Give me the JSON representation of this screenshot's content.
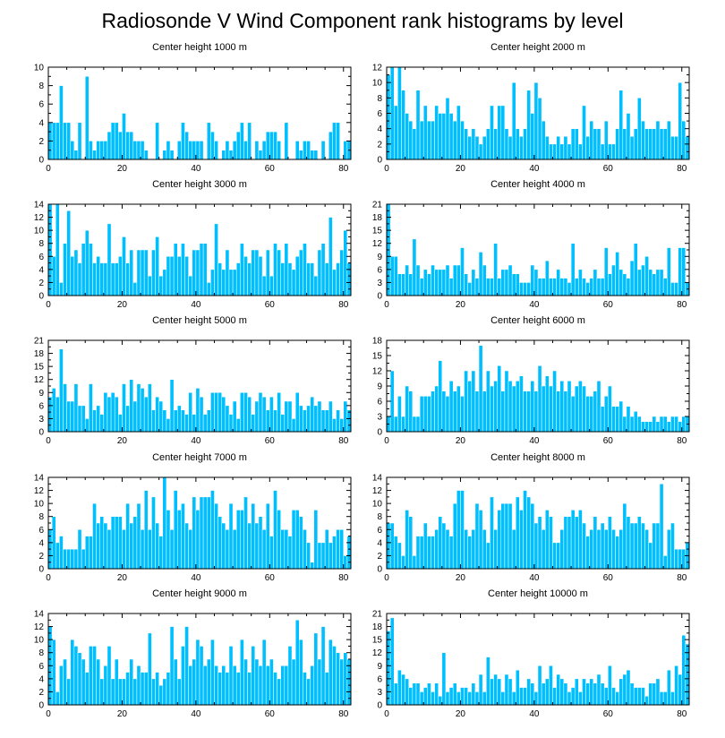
{
  "title": "Radiosonde V Wind Component rank histograms by level",
  "style": {
    "bar_color": "#00bfff",
    "bar_stroke": "#ffffff",
    "axis_color": "#000000"
  },
  "chart_data": [
    {
      "type": "bar",
      "title": "Center height 1000 m",
      "xlim": [
        0,
        82
      ],
      "ylim": [
        0,
        10
      ],
      "xticks": [
        0,
        20,
        40,
        60,
        80
      ],
      "yticks": [
        0,
        2,
        4,
        6,
        8,
        10
      ],
      "values": [
        4,
        4,
        4,
        8,
        4,
        4,
        2,
        1,
        4,
        0,
        9,
        2,
        1,
        2,
        2,
        2,
        3,
        4,
        4,
        3,
        5,
        3,
        3,
        2,
        2,
        2,
        1,
        0,
        0,
        4,
        0,
        1,
        2,
        1,
        0,
        2,
        4,
        3,
        2,
        2,
        2,
        2,
        0,
        4,
        3,
        2,
        0,
        1,
        2,
        1,
        2,
        3,
        4,
        2,
        4,
        0,
        2,
        1,
        2,
        3,
        3,
        3,
        2,
        0,
        4,
        0,
        0,
        2,
        1,
        2,
        2,
        1,
        1,
        0,
        2,
        0,
        3,
        4,
        4,
        0,
        2,
        2
      ]
    },
    {
      "type": "bar",
      "title": "Center height 2000 m",
      "xlim": [
        0,
        82
      ],
      "ylim": [
        0,
        12
      ],
      "xticks": [
        0,
        20,
        40,
        60,
        80
      ],
      "yticks": [
        0,
        2,
        4,
        6,
        8,
        10,
        12
      ],
      "values": [
        11,
        12,
        7,
        12,
        9,
        6,
        5,
        4,
        9,
        5,
        7,
        5,
        5,
        7,
        6,
        6,
        8,
        6,
        5,
        7,
        5,
        4,
        3,
        4,
        3,
        2,
        3,
        4,
        7,
        4,
        7,
        7,
        4,
        3,
        10,
        4,
        3,
        4,
        9,
        6,
        10,
        8,
        5,
        3,
        2,
        2,
        3,
        2,
        3,
        2,
        4,
        4,
        2,
        7,
        3,
        5,
        4,
        4,
        2,
        5,
        2,
        2,
        4,
        9,
        4,
        6,
        3,
        4,
        8,
        5,
        4,
        4,
        4,
        5,
        4,
        4,
        5,
        3,
        3,
        10,
        5,
        3
      ]
    },
    {
      "type": "bar",
      "title": "Center height 3000 m",
      "xlim": [
        0,
        82
      ],
      "ylim": [
        0,
        14
      ],
      "xticks": [
        0,
        20,
        40,
        60,
        80
      ],
      "yticks": [
        0,
        2,
        4,
        6,
        8,
        10,
        12,
        14
      ],
      "values": [
        14,
        6,
        14,
        2,
        8,
        13,
        6,
        7,
        5,
        8,
        10,
        8,
        5,
        6,
        5,
        5,
        11,
        5,
        5,
        6,
        9,
        5,
        7,
        2,
        7,
        7,
        7,
        3,
        7,
        9,
        3,
        4,
        6,
        6,
        8,
        6,
        8,
        6,
        3,
        7,
        7,
        8,
        8,
        2,
        4,
        11,
        5,
        4,
        7,
        4,
        4,
        5,
        8,
        6,
        5,
        7,
        7,
        6,
        3,
        7,
        3,
        8,
        7,
        5,
        8,
        5,
        4,
        6,
        7,
        8,
        5,
        5,
        3,
        7,
        8,
        5,
        12,
        4,
        5,
        7,
        10,
        5
      ]
    },
    {
      "type": "bar",
      "title": "Center height 4000 m",
      "xlim": [
        0,
        82
      ],
      "ylim": [
        0,
        21
      ],
      "xticks": [
        0,
        20,
        40,
        60,
        80
      ],
      "yticks": [
        0,
        3,
        6,
        9,
        12,
        15,
        18,
        21
      ],
      "values": [
        21,
        9,
        9,
        5,
        5,
        7,
        5,
        13,
        7,
        4,
        6,
        5,
        7,
        6,
        6,
        6,
        7,
        4,
        7,
        7,
        11,
        5,
        3,
        6,
        4,
        10,
        7,
        4,
        4,
        12,
        4,
        6,
        6,
        7,
        5,
        5,
        3,
        3,
        3,
        7,
        6,
        4,
        4,
        8,
        4,
        4,
        6,
        4,
        4,
        3,
        12,
        4,
        6,
        4,
        3,
        4,
        6,
        4,
        4,
        11,
        5,
        7,
        10,
        6,
        5,
        4,
        8,
        12,
        6,
        7,
        9,
        6,
        5,
        6,
        6,
        4,
        11,
        3,
        3,
        11,
        11,
        3
      ]
    },
    {
      "type": "bar",
      "title": "Center height 5000 m",
      "xlim": [
        0,
        82
      ],
      "ylim": [
        0,
        21
      ],
      "xticks": [
        0,
        20,
        40,
        60,
        80
      ],
      "yticks": [
        0,
        3,
        6,
        9,
        12,
        15,
        18,
        21
      ],
      "values": [
        8,
        10,
        8,
        19,
        11,
        7,
        7,
        11,
        6,
        6,
        3,
        11,
        5,
        6,
        4,
        9,
        8,
        9,
        8,
        4,
        11,
        6,
        12,
        7,
        11,
        10,
        8,
        11,
        5,
        8,
        7,
        5,
        3,
        12,
        5,
        6,
        5,
        4,
        9,
        4,
        10,
        8,
        4,
        5,
        9,
        9,
        9,
        8,
        6,
        4,
        7,
        3,
        9,
        9,
        8,
        4,
        7,
        9,
        8,
        5,
        8,
        5,
        9,
        4,
        7,
        7,
        3,
        9,
        6,
        5,
        6,
        8,
        6,
        7,
        5,
        5,
        7,
        3,
        5,
        3,
        7,
        5
      ]
    },
    {
      "type": "bar",
      "title": "Center height 6000 m",
      "xlim": [
        0,
        82
      ],
      "ylim": [
        0,
        18
      ],
      "xticks": [
        0,
        20,
        40,
        60,
        80
      ],
      "yticks": [
        0,
        3,
        6,
        9,
        12,
        15,
        18
      ],
      "values": [
        3,
        12,
        3,
        7,
        3,
        9,
        8,
        3,
        3,
        7,
        7,
        7,
        8,
        9,
        14,
        8,
        7,
        10,
        8,
        9,
        7,
        12,
        10,
        12,
        8,
        17,
        8,
        12,
        9,
        10,
        13,
        8,
        12,
        10,
        9,
        10,
        11,
        8,
        8,
        10,
        8,
        13,
        9,
        11,
        9,
        12,
        8,
        10,
        8,
        10,
        7,
        9,
        10,
        9,
        7,
        7,
        8,
        10,
        5,
        7,
        9,
        5,
        5,
        6,
        3,
        5,
        3,
        4,
        3,
        2,
        2,
        2,
        3,
        2,
        3,
        3,
        2,
        3,
        3,
        2,
        3,
        3
      ]
    },
    {
      "type": "bar",
      "title": "Center height 7000 m",
      "xlim": [
        0,
        82
      ],
      "ylim": [
        0,
        14
      ],
      "xticks": [
        0,
        20,
        40,
        60,
        80
      ],
      "yticks": [
        0,
        2,
        4,
        6,
        8,
        10,
        12,
        14
      ],
      "values": [
        6,
        8,
        4,
        5,
        3,
        3,
        3,
        3,
        6,
        3,
        5,
        5,
        10,
        7,
        8,
        7,
        6,
        8,
        8,
        8,
        6,
        10,
        7,
        8,
        10,
        6,
        12,
        6,
        11,
        7,
        5,
        14,
        9,
        6,
        12,
        9,
        10,
        7,
        6,
        11,
        9,
        11,
        11,
        11,
        12,
        10,
        8,
        7,
        6,
        10,
        6,
        9,
        9,
        11,
        7,
        10,
        7,
        8,
        6,
        10,
        5,
        12,
        9,
        6,
        6,
        5,
        9,
        9,
        8,
        6,
        4,
        1,
        9,
        4,
        4,
        6,
        4,
        5,
        6,
        6,
        2,
        5
      ]
    },
    {
      "type": "bar",
      "title": "Center height 8000 m",
      "xlim": [
        0,
        82
      ],
      "ylim": [
        0,
        14
      ],
      "xticks": [
        0,
        20,
        40,
        60,
        80
      ],
      "yticks": [
        0,
        2,
        4,
        6,
        8,
        10,
        12,
        14
      ],
      "values": [
        7,
        7,
        5,
        4,
        2,
        9,
        8,
        2,
        5,
        5,
        7,
        5,
        5,
        6,
        8,
        7,
        6,
        5,
        10,
        12,
        12,
        6,
        5,
        6,
        10,
        9,
        6,
        4,
        11,
        6,
        9,
        10,
        10,
        10,
        6,
        11,
        9,
        12,
        11,
        10,
        7,
        8,
        6,
        9,
        8,
        4,
        4,
        6,
        8,
        8,
        9,
        8,
        9,
        7,
        5,
        6,
        8,
        6,
        7,
        6,
        8,
        6,
        5,
        6,
        10,
        8,
        7,
        7,
        8,
        7,
        6,
        4,
        7,
        7,
        13,
        2,
        6,
        7,
        3,
        3,
        3,
        4
      ]
    },
    {
      "type": "bar",
      "title": "Center height 9000 m",
      "xlim": [
        0,
        82
      ],
      "ylim": [
        0,
        14
      ],
      "xticks": [
        0,
        20,
        40,
        60,
        80
      ],
      "yticks": [
        0,
        2,
        4,
        6,
        8,
        10,
        12,
        14
      ],
      "values": [
        12,
        10,
        2,
        6,
        7,
        4,
        10,
        9,
        8,
        7,
        5,
        9,
        9,
        7,
        4,
        6,
        9,
        4,
        7,
        4,
        4,
        5,
        7,
        4,
        6,
        5,
        5,
        11,
        4,
        5,
        3,
        4,
        5,
        12,
        7,
        4,
        9,
        12,
        6,
        7,
        10,
        9,
        6,
        7,
        10,
        6,
        5,
        6,
        5,
        9,
        6,
        5,
        10,
        7,
        5,
        9,
        7,
        6,
        10,
        6,
        7,
        5,
        4,
        6,
        6,
        9,
        7,
        13,
        10,
        5,
        4,
        6,
        11,
        7,
        12,
        5,
        10,
        9,
        8,
        7,
        8,
        7
      ]
    },
    {
      "type": "bar",
      "title": "Center height 10000 m",
      "xlim": [
        0,
        82
      ],
      "ylim": [
        0,
        21
      ],
      "xticks": [
        0,
        20,
        40,
        60,
        80
      ],
      "yticks": [
        0,
        3,
        6,
        9,
        12,
        15,
        18,
        21
      ],
      "values": [
        17,
        20,
        5,
        8,
        7,
        6,
        4,
        5,
        5,
        3,
        4,
        5,
        3,
        5,
        2,
        12,
        3,
        4,
        5,
        3,
        4,
        4,
        3,
        5,
        3,
        7,
        3,
        11,
        6,
        7,
        6,
        3,
        7,
        6,
        3,
        8,
        4,
        4,
        6,
        5,
        3,
        9,
        5,
        6,
        9,
        4,
        7,
        6,
        5,
        3,
        4,
        6,
        3,
        6,
        5,
        6,
        5,
        7,
        5,
        4,
        9,
        4,
        3,
        6,
        7,
        8,
        5,
        4,
        4,
        4,
        2,
        5,
        5,
        6,
        3,
        3,
        8,
        3,
        9,
        7,
        16,
        14
      ]
    }
  ]
}
